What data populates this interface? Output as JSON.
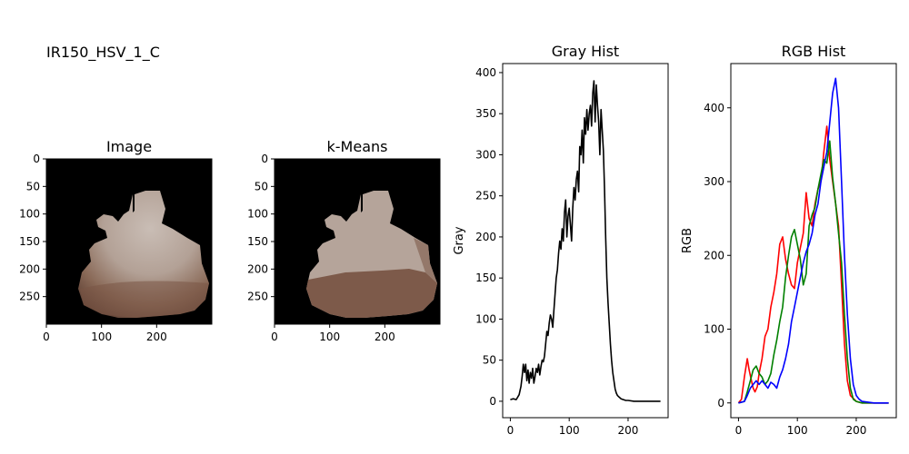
{
  "figure_title": "IR150_HSV_1_C",
  "colors": {
    "black": "#000000",
    "red": "#ff0000",
    "green": "#008000",
    "blue": "#0000ff"
  },
  "chart_data": [
    {
      "type": "image",
      "title": "Image",
      "xticks": [
        0,
        100,
        200
      ],
      "yticks": [
        0,
        50,
        100,
        150,
        200,
        250
      ],
      "xlim": [
        0,
        300
      ],
      "ylim": [
        300,
        0
      ]
    },
    {
      "type": "image",
      "title": "k-Means",
      "xticks": [
        0,
        100,
        200
      ],
      "yticks": [
        0,
        50,
        100,
        150,
        200,
        250
      ],
      "xlim": [
        0,
        300
      ],
      "ylim": [
        300,
        0
      ]
    },
    {
      "type": "line",
      "title": "Gray Hist",
      "xlabel": "",
      "ylabel": "Gray",
      "xlim": [
        -13,
        268
      ],
      "ylim": [
        -20,
        411
      ],
      "xticks": [
        0,
        100,
        200
      ],
      "yticks": [
        0,
        50,
        100,
        150,
        200,
        250,
        300,
        350,
        400
      ],
      "series": [
        {
          "color": "#000000",
          "x": [
            0,
            5,
            10,
            15,
            18,
            20,
            22,
            24,
            26,
            28,
            30,
            32,
            34,
            36,
            38,
            40,
            42,
            44,
            46,
            48,
            50,
            52,
            54,
            56,
            58,
            60,
            62,
            64,
            66,
            68,
            70,
            72,
            74,
            76,
            78,
            80,
            82,
            84,
            86,
            88,
            90,
            92,
            94,
            96,
            98,
            100,
            102,
            104,
            106,
            108,
            110,
            112,
            114,
            116,
            118,
            120,
            122,
            124,
            126,
            128,
            130,
            132,
            134,
            136,
            138,
            140,
            142,
            144,
            146,
            148,
            150,
            152,
            154,
            156,
            158,
            160,
            162,
            164,
            166,
            168,
            170,
            172,
            174,
            176,
            178,
            180,
            182,
            185,
            188,
            192,
            196,
            200,
            210,
            220,
            230,
            240,
            255
          ],
          "y": [
            2,
            3,
            2,
            8,
            18,
            30,
            45,
            35,
            45,
            25,
            38,
            22,
            35,
            28,
            40,
            22,
            30,
            40,
            35,
            45,
            32,
            42,
            50,
            48,
            55,
            70,
            85,
            80,
            95,
            105,
            100,
            90,
            110,
            130,
            150,
            160,
            180,
            195,
            185,
            210,
            195,
            230,
            245,
            200,
            225,
            235,
            215,
            195,
            235,
            260,
            245,
            270,
            280,
            255,
            310,
            300,
            330,
            290,
            345,
            325,
            355,
            330,
            350,
            360,
            335,
            375,
            390,
            340,
            385,
            360,
            340,
            300,
            355,
            330,
            305,
            260,
            200,
            150,
            120,
            95,
            70,
            50,
            35,
            25,
            15,
            10,
            7,
            5,
            3,
            2,
            1,
            1,
            0,
            0,
            0,
            0,
            0
          ]
        }
      ]
    },
    {
      "type": "line",
      "title": "RGB Hist",
      "xlabel": "",
      "ylabel": "RGB",
      "xlim": [
        -13,
        268
      ],
      "ylim": [
        -20,
        460
      ],
      "xticks": [
        0,
        100,
        200
      ],
      "yticks": [
        0,
        100,
        200,
        300,
        400
      ],
      "series": [
        {
          "color": "#ff0000",
          "x": [
            0,
            5,
            10,
            15,
            18,
            22,
            25,
            28,
            32,
            35,
            40,
            45,
            50,
            55,
            60,
            65,
            70,
            75,
            80,
            85,
            90,
            95,
            100,
            105,
            110,
            115,
            120,
            125,
            130,
            135,
            140,
            145,
            150,
            155,
            160,
            165,
            170,
            175,
            180,
            185,
            190,
            200,
            210,
            255
          ],
          "y": [
            0,
            5,
            35,
            60,
            45,
            30,
            20,
            15,
            22,
            40,
            60,
            90,
            100,
            130,
            150,
            175,
            215,
            225,
            195,
            175,
            160,
            155,
            190,
            210,
            230,
            285,
            250,
            240,
            270,
            290,
            300,
            340,
            375,
            330,
            300,
            270,
            240,
            160,
            80,
            30,
            10,
            2,
            0,
            0
          ]
        },
        {
          "color": "#008000",
          "x": [
            0,
            10,
            15,
            20,
            25,
            30,
            35,
            40,
            45,
            50,
            55,
            60,
            65,
            70,
            75,
            80,
            85,
            90,
            95,
            100,
            105,
            110,
            115,
            120,
            125,
            130,
            135,
            140,
            145,
            150,
            155,
            160,
            165,
            170,
            175,
            180,
            185,
            190,
            195,
            200,
            210,
            255
          ],
          "y": [
            0,
            2,
            15,
            30,
            45,
            50,
            40,
            35,
            25,
            30,
            40,
            65,
            85,
            110,
            130,
            170,
            200,
            225,
            235,
            215,
            195,
            160,
            175,
            240,
            255,
            265,
            290,
            310,
            330,
            325,
            355,
            305,
            270,
            230,
            190,
            120,
            60,
            20,
            5,
            2,
            0,
            0
          ]
        },
        {
          "color": "#0000ff",
          "x": [
            0,
            10,
            15,
            20,
            25,
            30,
            35,
            40,
            45,
            50,
            55,
            60,
            65,
            70,
            75,
            80,
            85,
            90,
            95,
            100,
            105,
            110,
            115,
            120,
            125,
            130,
            135,
            140,
            145,
            150,
            155,
            160,
            165,
            170,
            175,
            180,
            185,
            190,
            195,
            200,
            205,
            210,
            220,
            230,
            255
          ],
          "y": [
            0,
            2,
            10,
            20,
            25,
            30,
            25,
            30,
            25,
            20,
            28,
            25,
            20,
            35,
            45,
            60,
            80,
            110,
            130,
            150,
            170,
            190,
            205,
            215,
            230,
            255,
            270,
            300,
            320,
            340,
            380,
            420,
            440,
            400,
            300,
            200,
            120,
            60,
            25,
            10,
            5,
            2,
            1,
            0,
            0
          ]
        }
      ]
    }
  ]
}
